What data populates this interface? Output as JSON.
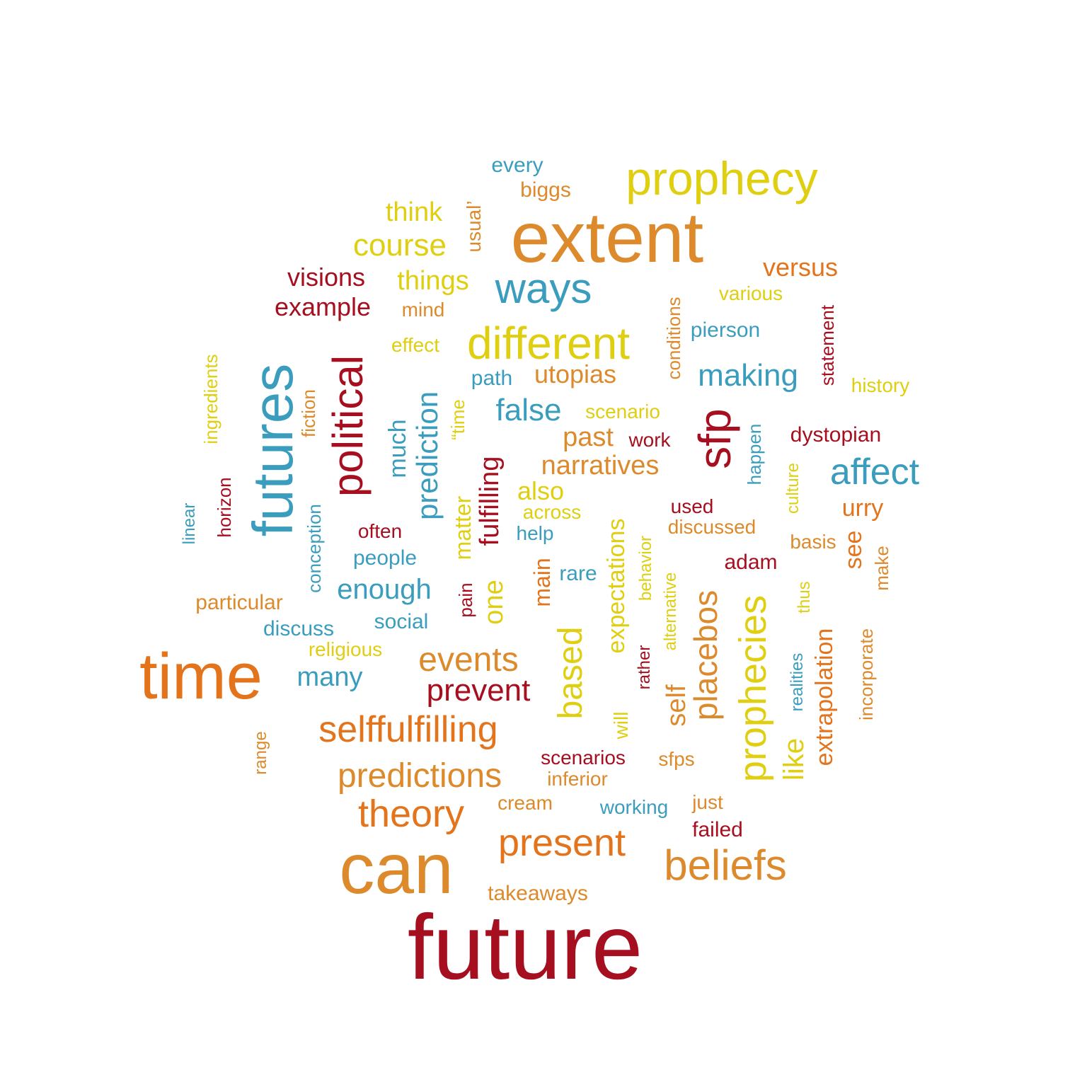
{
  "palette": {
    "red": "#a50f1f",
    "orange": "#e3741c",
    "ochre": "#dc8a2c",
    "yellow": "#dfcf10",
    "teal": "#3b9dbd"
  },
  "words": [
    {
      "text": "future",
      "color": "red"
    },
    {
      "text": "can",
      "color": "ochre"
    },
    {
      "text": "extent",
      "color": "ochre"
    },
    {
      "text": "time",
      "color": "orange"
    },
    {
      "text": "futures",
      "color": "teal"
    },
    {
      "text": "prophecy",
      "color": "yellow"
    },
    {
      "text": "different",
      "color": "yellow"
    },
    {
      "text": "ways",
      "color": "teal"
    },
    {
      "text": "political",
      "color": "red"
    },
    {
      "text": "sfp",
      "color": "red"
    },
    {
      "text": "beliefs",
      "color": "ochre"
    },
    {
      "text": "present",
      "color": "orange"
    },
    {
      "text": "prophecies",
      "color": "yellow"
    },
    {
      "text": "theory",
      "color": "orange"
    },
    {
      "text": "selffulfilling",
      "color": "orange"
    },
    {
      "text": "predictions",
      "color": "ochre"
    },
    {
      "text": "events",
      "color": "ochre"
    },
    {
      "text": "based",
      "color": "yellow"
    },
    {
      "text": "placebos",
      "color": "ochre"
    },
    {
      "text": "affect",
      "color": "teal"
    },
    {
      "text": "making",
      "color": "teal"
    },
    {
      "text": "prediction",
      "color": "teal"
    },
    {
      "text": "prevent",
      "color": "red"
    },
    {
      "text": "course",
      "color": "yellow"
    },
    {
      "text": "false",
      "color": "teal"
    },
    {
      "text": "fulfilling",
      "color": "red"
    },
    {
      "text": "narratives",
      "color": "ochre"
    },
    {
      "text": "think",
      "color": "yellow"
    },
    {
      "text": "visions",
      "color": "red"
    },
    {
      "text": "example",
      "color": "red"
    },
    {
      "text": "things",
      "color": "yellow"
    },
    {
      "text": "utopias",
      "color": "ochre"
    },
    {
      "text": "past",
      "color": "ochre"
    },
    {
      "text": "enough",
      "color": "teal"
    },
    {
      "text": "many",
      "color": "teal"
    },
    {
      "text": "versus",
      "color": "orange"
    },
    {
      "text": "one",
      "color": "yellow"
    },
    {
      "text": "like",
      "color": "yellow"
    },
    {
      "text": "self",
      "color": "ochre"
    },
    {
      "text": "extrapolation",
      "color": "orange"
    },
    {
      "text": "expectations",
      "color": "yellow"
    },
    {
      "text": "much",
      "color": "teal"
    },
    {
      "text": "matter",
      "color": "yellow"
    },
    {
      "text": "also",
      "color": "yellow"
    },
    {
      "text": "urry",
      "color": "orange"
    },
    {
      "text": "main",
      "color": "orange"
    },
    {
      "text": "see",
      "color": "orange"
    },
    {
      "text": "every",
      "color": "teal"
    },
    {
      "text": "biggs",
      "color": "ochre"
    },
    {
      "text": "usual’",
      "color": "ochre"
    },
    {
      "text": "various",
      "color": "yellow"
    },
    {
      "text": "mind",
      "color": "ochre"
    },
    {
      "text": "effect",
      "color": "yellow"
    },
    {
      "text": "conditions",
      "color": "ochre"
    },
    {
      "text": "statement",
      "color": "red"
    },
    {
      "text": "pierson",
      "color": "teal"
    },
    {
      "text": "path",
      "color": "teal"
    },
    {
      "text": "history",
      "color": "yellow"
    },
    {
      "text": "ingredients",
      "color": "yellow"
    },
    {
      "text": "fiction",
      "color": "ochre"
    },
    {
      "text": "scenario",
      "color": "yellow"
    },
    {
      "text": "“time",
      "color": "yellow"
    },
    {
      "text": "work",
      "color": "red"
    },
    {
      "text": "dystopian",
      "color": "red"
    },
    {
      "text": "happen",
      "color": "teal"
    },
    {
      "text": "culture",
      "color": "yellow"
    },
    {
      "text": "across",
      "color": "yellow"
    },
    {
      "text": "used",
      "color": "red"
    },
    {
      "text": "horizon",
      "color": "red"
    },
    {
      "text": "linear",
      "color": "teal"
    },
    {
      "text": "conception",
      "color": "teal"
    },
    {
      "text": "often",
      "color": "red"
    },
    {
      "text": "help",
      "color": "teal"
    },
    {
      "text": "discussed",
      "color": "ochre"
    },
    {
      "text": "basis",
      "color": "ochre"
    },
    {
      "text": "people",
      "color": "teal"
    },
    {
      "text": "adam",
      "color": "red"
    },
    {
      "text": "rare",
      "color": "teal"
    },
    {
      "text": "behavior",
      "color": "yellow"
    },
    {
      "text": "make",
      "color": "ochre"
    },
    {
      "text": "particular",
      "color": "ochre"
    },
    {
      "text": "pain",
      "color": "red"
    },
    {
      "text": "alternative",
      "color": "yellow"
    },
    {
      "text": "thus",
      "color": "yellow"
    },
    {
      "text": "social",
      "color": "teal"
    },
    {
      "text": "discuss",
      "color": "teal"
    },
    {
      "text": "rather",
      "color": "red"
    },
    {
      "text": "religious",
      "color": "yellow"
    },
    {
      "text": "incorporate",
      "color": "ochre"
    },
    {
      "text": "realities",
      "color": "teal"
    },
    {
      "text": "range",
      "color": "ochre"
    },
    {
      "text": "will",
      "color": "yellow"
    },
    {
      "text": "scenarios",
      "color": "red"
    },
    {
      "text": "sfps",
      "color": "ochre"
    },
    {
      "text": "inferior",
      "color": "ochre"
    },
    {
      "text": "cream",
      "color": "ochre"
    },
    {
      "text": "working",
      "color": "teal"
    },
    {
      "text": "just",
      "color": "ochre"
    },
    {
      "text": "failed",
      "color": "red"
    },
    {
      "text": "takeaways",
      "color": "ochre"
    }
  ]
}
